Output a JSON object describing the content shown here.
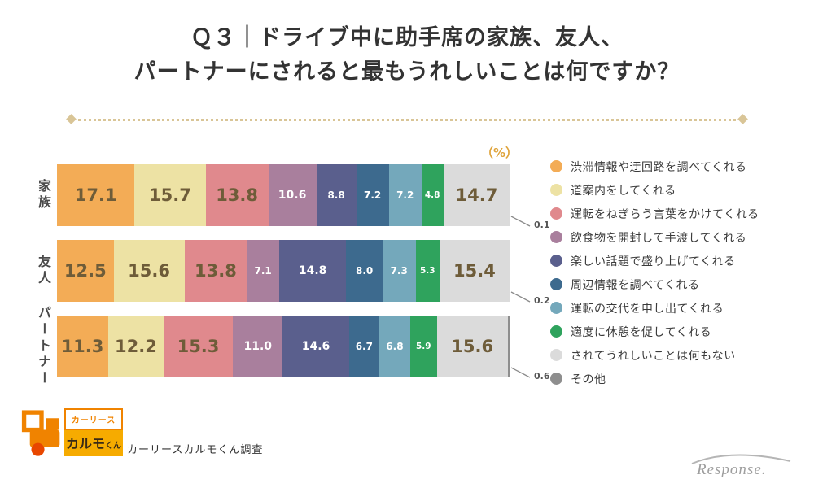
{
  "title": {
    "line1": "Ｑ３｜ドライブ中に助手席の家族、友人、",
    "line2": "パートナーにされると最もうれしいことは何ですか？"
  },
  "unit_label": "（%）",
  "chart_data": {
    "type": "bar",
    "stacked": true,
    "orientation": "horizontal",
    "unit": "%",
    "xlim": [
      0,
      100
    ],
    "legend_position": "right",
    "categories": [
      "家族",
      "友人",
      "パートナー"
    ],
    "series": [
      {
        "name": "渋滞情報や迂回路を調べてくれる",
        "color": "#F3AC56",
        "values": [
          17.1,
          12.5,
          11.3
        ]
      },
      {
        "name": "道案内をしてくれる",
        "color": "#EDE2A4",
        "values": [
          15.7,
          15.6,
          12.2
        ]
      },
      {
        "name": "運転をねぎらう言葉をかけてくれる",
        "color": "#E0898D",
        "values": [
          13.8,
          13.8,
          15.3
        ]
      },
      {
        "name": "飲食物を開封して手渡してくれる",
        "color": "#A97F9D",
        "values": [
          10.6,
          7.1,
          11.0
        ]
      },
      {
        "name": "楽しい話題で盛り上げてくれる",
        "color": "#5A5F8D",
        "values": [
          8.8,
          14.8,
          14.6
        ]
      },
      {
        "name": "周辺情報を調べてくれる",
        "color": "#3D6A8E",
        "values": [
          7.2,
          8.0,
          6.7
        ]
      },
      {
        "name": "運転の交代を申し出てくれる",
        "color": "#74A8BB",
        "values": [
          7.2,
          7.3,
          6.8
        ]
      },
      {
        "name": "適度に休憩を促してくれる",
        "color": "#2FA35D",
        "values": [
          4.8,
          5.3,
          5.9
        ]
      },
      {
        "name": "されてうれしいことは何もない",
        "color": "#DBDBDB",
        "values": [
          14.7,
          15.4,
          15.6
        ]
      },
      {
        "name": "その他",
        "color": "#8E8E8E",
        "values": [
          0.1,
          0.2,
          0.6
        ]
      }
    ]
  },
  "footer": {
    "logo_top": "カーリース",
    "logo_bottom_main": "カルモ",
    "logo_bottom_suffix": "くん",
    "source_text": "カーリースカルモくん調査"
  },
  "watermark": "Response."
}
